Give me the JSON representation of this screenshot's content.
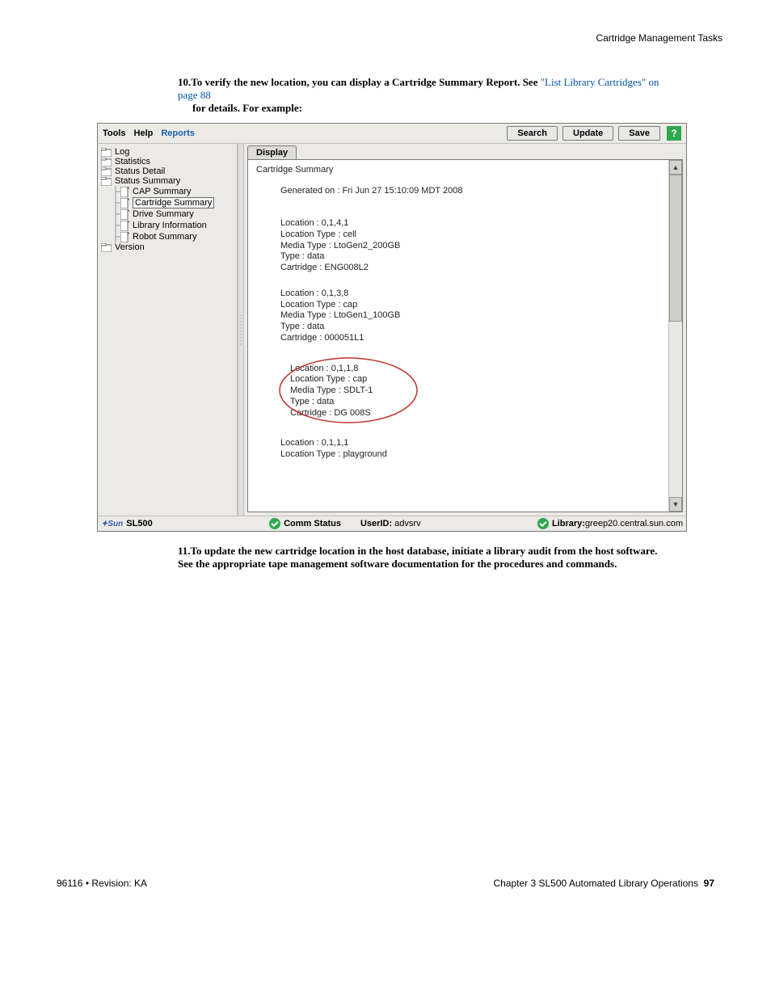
{
  "page": {
    "header_right": "Cartridge Management Tasks",
    "footer_left": "96116 • Revision: KA",
    "footer_right_prefix": "Chapter 3 SL500 Automated Library Operations",
    "footer_page": "97"
  },
  "text": {
    "step10_prefix": "10.",
    "step10_a": "To verify the new location, you can display a Cartridge Summary Report. See ",
    "step10_link": "\"List Library Cartridges\" on page 88",
    "step10_b": " for details. For example:",
    "step11_prefix": "11.",
    "step11": "To update the new cartridge location in the host database, initiate a library audit from the host software. See the appropriate tape management software documentation for the procedures and commands."
  },
  "menubar": {
    "tools": "Tools",
    "help": "Help",
    "reports": "Reports",
    "search": "Search",
    "update": "Update",
    "save": "Save",
    "help_btn": "?"
  },
  "sidebar": {
    "items": [
      {
        "label": "Log",
        "type": "folder",
        "indent": 0
      },
      {
        "label": "Statistics",
        "type": "folder",
        "indent": 0
      },
      {
        "label": "Status Detail",
        "type": "folder",
        "indent": 0
      },
      {
        "label": "Status Summary",
        "type": "folder",
        "indent": 0
      },
      {
        "label": "CAP Summary",
        "type": "file",
        "indent": 1
      },
      {
        "label": "Cartridge Summary",
        "type": "file",
        "indent": 1,
        "selected": true
      },
      {
        "label": "Drive Summary",
        "type": "file",
        "indent": 1
      },
      {
        "label": "Library Information",
        "type": "file",
        "indent": 1
      },
      {
        "label": "Robot Summary",
        "type": "file",
        "indent": 1
      },
      {
        "label": "Version",
        "type": "folder",
        "indent": 0
      }
    ]
  },
  "tab": {
    "display": "Display"
  },
  "report": {
    "title": "Cartridge Summary",
    "generated": "Generated on : Fri Jun 27 15:10:09 MDT 2008",
    "blocks": [
      {
        "circled": false,
        "lines": {
          "loc": "Location : 0,1,4,1",
          "ltype": "Location Type : cell",
          "mtype": "Media Type : LtoGen2_200GB",
          "type": "Type : data",
          "cart": "Cartridge : ENG008L2"
        }
      },
      {
        "circled": false,
        "lines": {
          "loc": "Location : 0,1,3,8",
          "ltype": "Location Type : cap",
          "mtype": "Media Type : LtoGen1_100GB",
          "type": "Type : data",
          "cart": "Cartridge : 000051L1"
        }
      },
      {
        "circled": true,
        "lines": {
          "loc": "Location : 0,1,1,8",
          "ltype": "Location Type : cap",
          "mtype": "Media Type : SDLT-1",
          "type": "Type : data",
          "cart": "Cartridge : DG 008S"
        }
      },
      {
        "circled": false,
        "lines": {
          "loc": "Location : 0,1,1,1",
          "ltype": "Location Type : playground"
        }
      }
    ]
  },
  "statusbar": {
    "brand": "Sun",
    "product": "SL500",
    "comm": "Comm Status",
    "user_label": "UserID:",
    "user_value": "advsrv",
    "lib_label": "Library:",
    "lib_value": "greep20.central.sun.com"
  },
  "colors": {
    "annotation": "#c03028"
  }
}
